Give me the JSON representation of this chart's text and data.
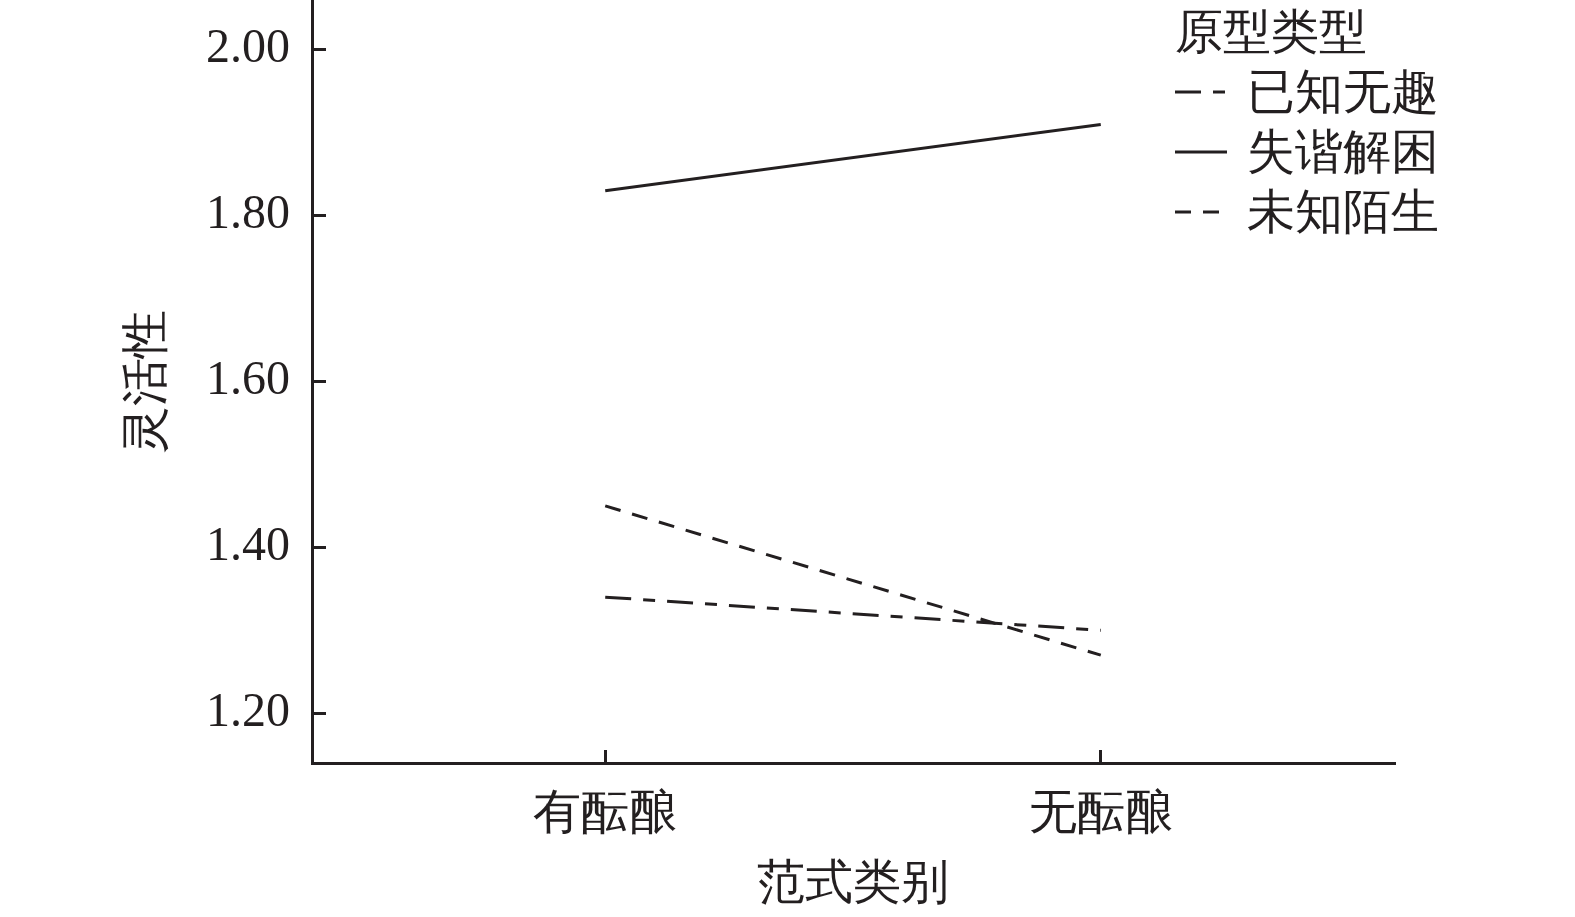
{
  "chart_data": {
    "type": "line",
    "xlabel": "范式类别",
    "ylabel": "灵活性",
    "legend_title": "原型类型",
    "legend": "top right",
    "categories": [
      "有酝酿",
      "无酝酿"
    ],
    "series": [
      {
        "name": "已知无趣",
        "color": "#231f20",
        "line_style": "dashdot",
        "values": [
          1.34,
          1.3
        ]
      },
      {
        "name": "失谐解困",
        "color": "#231f20",
        "line_style": "solid",
        "values": [
          1.83,
          1.91
        ]
      },
      {
        "name": "未知陌生",
        "color": "#231f20",
        "line_style": "dashed",
        "values": [
          1.45,
          1.27
        ]
      }
    ],
    "ylim": [
      1.14,
      2.06
    ],
    "yticks": [
      {
        "value": 1.2,
        "label": "1.20"
      },
      {
        "value": 1.4,
        "label": "1.40"
      },
      {
        "value": 1.6,
        "label": "1.60"
      },
      {
        "value": 1.8,
        "label": "1.80"
      },
      {
        "value": 2.0,
        "label": "2.00"
      }
    ]
  }
}
